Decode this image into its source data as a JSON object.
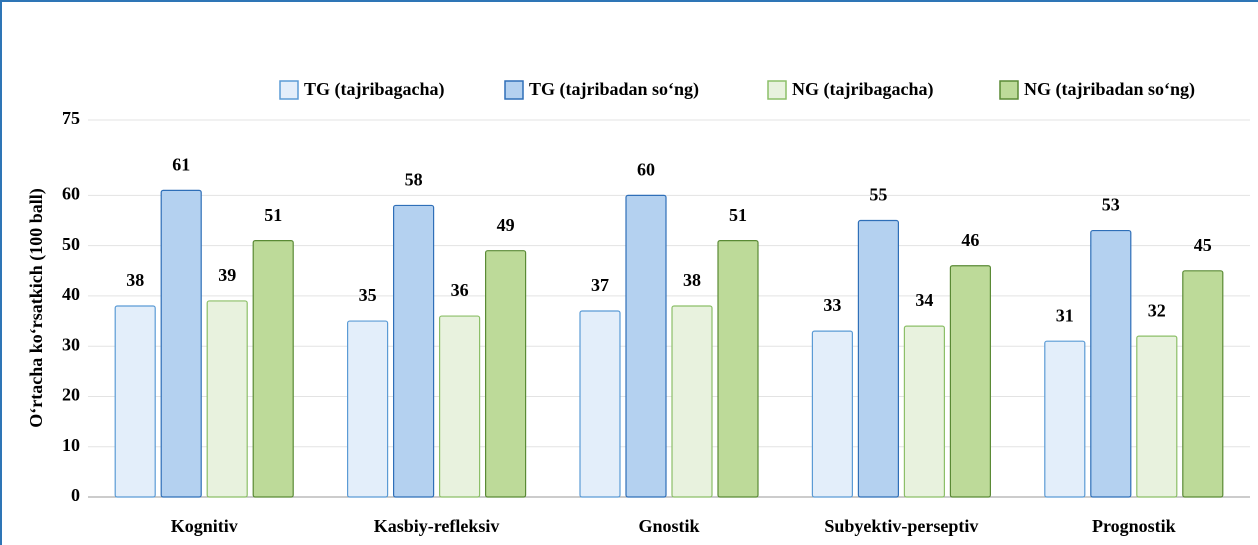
{
  "chart_data": {
    "type": "bar",
    "y_label": "O‘rtacha ko‘rsatkich (100 ball)",
    "categories": [
      "Kognitiv",
      "Kasbiy-refleksiv",
      "Gnostik",
      "Subyektiv-perseptiv",
      "Prognostik"
    ],
    "series": [
      {
        "name": "TG (tajribagacha)",
        "color": "#e3eefa",
        "values": [
          38,
          35,
          37,
          33,
          31
        ]
      },
      {
        "name": "TG (tajribadan so‘ng)",
        "color": "#b4d1f0",
        "values": [
          61,
          58,
          60,
          55,
          53
        ]
      },
      {
        "name": "NG (tajribagacha)",
        "color": "#e8f2de",
        "values": [
          39,
          36,
          38,
          34,
          32
        ]
      },
      {
        "name": "NG (tajribadan so‘ng)",
        "color": "#bdda99",
        "values": [
          51,
          49,
          51,
          46,
          45
        ]
      }
    ],
    "ylim": [
      0,
      75
    ],
    "yticks": [
      0,
      10,
      20,
      30,
      40,
      50,
      60,
      75
    ],
    "grid": true,
    "legend": "top"
  }
}
